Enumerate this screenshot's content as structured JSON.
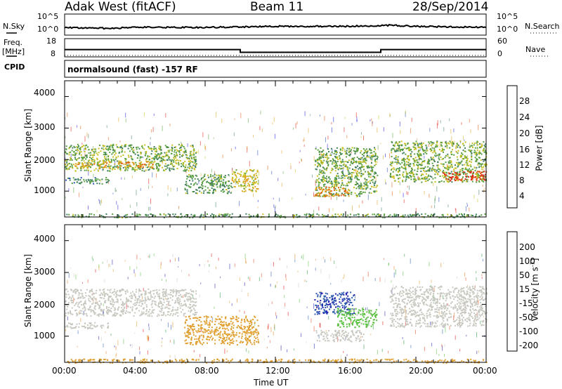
{
  "header": {
    "station": "Adak West (fitACF)",
    "beam": "Beam 11",
    "date": "28/Sep/2014"
  },
  "summary": {
    "nsky_label": "N.Sky",
    "nsearch_label": "N.Search",
    "freq_label": "Freq.",
    "freq_unit": "[MHz]",
    "cpid_label": "CPID",
    "nave_label": "Nave",
    "cpid_text": "normalsound (fast) -157 RF",
    "noise_ticks_left": [
      "10^5",
      "10^0"
    ],
    "noise_ticks_right": [
      "10^5",
      "10^0"
    ],
    "freq_ticks": [
      "18",
      "8"
    ],
    "nave_ticks": [
      "60",
      "0"
    ]
  },
  "axes": {
    "ylabel": "Slant Range [km]",
    "xlabel": "Time UT",
    "yticks": [
      "4000",
      "3000",
      "2000",
      "1000"
    ],
    "xticks": [
      "00:00",
      "04:00",
      "08:00",
      "12:00",
      "16:00",
      "20:00",
      "00:00"
    ]
  },
  "colorbars": {
    "power_label": "Power [dB]",
    "power_ticks": [
      "28",
      "24",
      "20",
      "16",
      "12",
      "8",
      "4"
    ],
    "velocity_label": "Velocity [m s",
    "velocity_superscript": "-1",
    "velocity_suffix": "]",
    "velocity_ticks": [
      "200",
      "100",
      "50",
      "15",
      "-15",
      "-50",
      "-100",
      "-200"
    ]
  },
  "chart_data": [
    {
      "type": "line",
      "title": "",
      "series": [
        {
          "name": "N.Sky",
          "x_hours": [
            0,
            2.5,
            4,
            8,
            12,
            16,
            18.5,
            20,
            24
          ],
          "values": [
            2,
            1.5,
            2,
            2,
            2.5,
            2.5,
            3,
            2.5,
            2
          ]
        },
        {
          "name": "Freq.",
          "x_hours": [
            0,
            10,
            10,
            18,
            18,
            24
          ],
          "values": [
            12,
            12,
            10.5,
            10.5,
            12,
            12
          ]
        },
        {
          "name": "Nave",
          "x_hours": [
            0,
            24
          ],
          "values": [
            5,
            5
          ]
        }
      ],
      "ylim_freq": [
        8,
        18
      ],
      "ylim_nave": [
        0,
        60
      ]
    },
    {
      "type": "heatmap",
      "title": "Power [dB]",
      "x_range_hours": [
        0,
        24
      ],
      "y_range_km": [
        180,
        4500
      ],
      "value_range": [
        0,
        30
      ],
      "regions": [
        {
          "t0": 0.0,
          "t1": 7.5,
          "r0": 1650,
          "r1": 2500,
          "value": 14
        },
        {
          "t0": 0.5,
          "t1": 2.6,
          "r0": 1750,
          "r1": 1950,
          "value": 20
        },
        {
          "t0": 3.0,
          "t1": 5.0,
          "r0": 1750,
          "r1": 1950,
          "value": 22
        },
        {
          "t0": 0.0,
          "t1": 2.5,
          "r0": 1250,
          "r1": 1450,
          "value": 10
        },
        {
          "t0": 6.8,
          "t1": 9.5,
          "r0": 950,
          "r1": 1550,
          "value": 12
        },
        {
          "t0": 9.5,
          "t1": 11.0,
          "r0": 1000,
          "r1": 1700,
          "value": 18
        },
        {
          "t0": 14.2,
          "t1": 17.8,
          "r0": 850,
          "r1": 2400,
          "value": 13
        },
        {
          "t0": 14.2,
          "t1": 16.2,
          "r0": 850,
          "r1": 1150,
          "value": 22
        },
        {
          "t0": 18.5,
          "t1": 24.0,
          "r0": 1300,
          "r1": 2600,
          "value": 14
        },
        {
          "t0": 21.5,
          "t1": 24.0,
          "r0": 1350,
          "r1": 1650,
          "value": 27
        },
        {
          "t0": 0.0,
          "t1": 24.0,
          "r0": 180,
          "r1": 300,
          "value": 12
        }
      ]
    },
    {
      "type": "heatmap",
      "title": "Velocity [m s-1]",
      "x_range_hours": [
        0,
        24
      ],
      "y_range_km": [
        180,
        4500
      ],
      "value_range": [
        -200,
        200
      ],
      "regions": [
        {
          "t0": 0.0,
          "t1": 7.5,
          "r0": 1650,
          "r1": 2500,
          "value": 0
        },
        {
          "t0": 0.0,
          "t1": 2.5,
          "r0": 1250,
          "r1": 1450,
          "value": 0
        },
        {
          "t0": 6.8,
          "t1": 11.0,
          "r0": 750,
          "r1": 1650,
          "value": -40
        },
        {
          "t0": 14.2,
          "t1": 16.5,
          "r0": 1700,
          "r1": 2400,
          "value": 150
        },
        {
          "t0": 15.5,
          "t1": 17.8,
          "r0": 1300,
          "r1": 1900,
          "value": 35
        },
        {
          "t0": 14.2,
          "t1": 17.0,
          "r0": 850,
          "r1": 1200,
          "value": 0
        },
        {
          "t0": 18.5,
          "t1": 24.0,
          "r0": 1300,
          "r1": 2600,
          "value": 0
        },
        {
          "t0": 0.0,
          "t1": 24.0,
          "r0": 180,
          "r1": 300,
          "value": -40
        }
      ]
    }
  ],
  "colors": {
    "power_scale": [
      "#2020e0",
      "#2c4fb8",
      "#3f7f5f",
      "#5aa040",
      "#c8c020",
      "#e0a020",
      "#e06010",
      "#e02010"
    ],
    "velocity_scale": [
      "#e01010",
      "#e05020",
      "#e08020",
      "#e0a030",
      "#c8c8c0",
      "#5ac040",
      "#2a9a40",
      "#2e5ab0",
      "#2020b0"
    ]
  }
}
